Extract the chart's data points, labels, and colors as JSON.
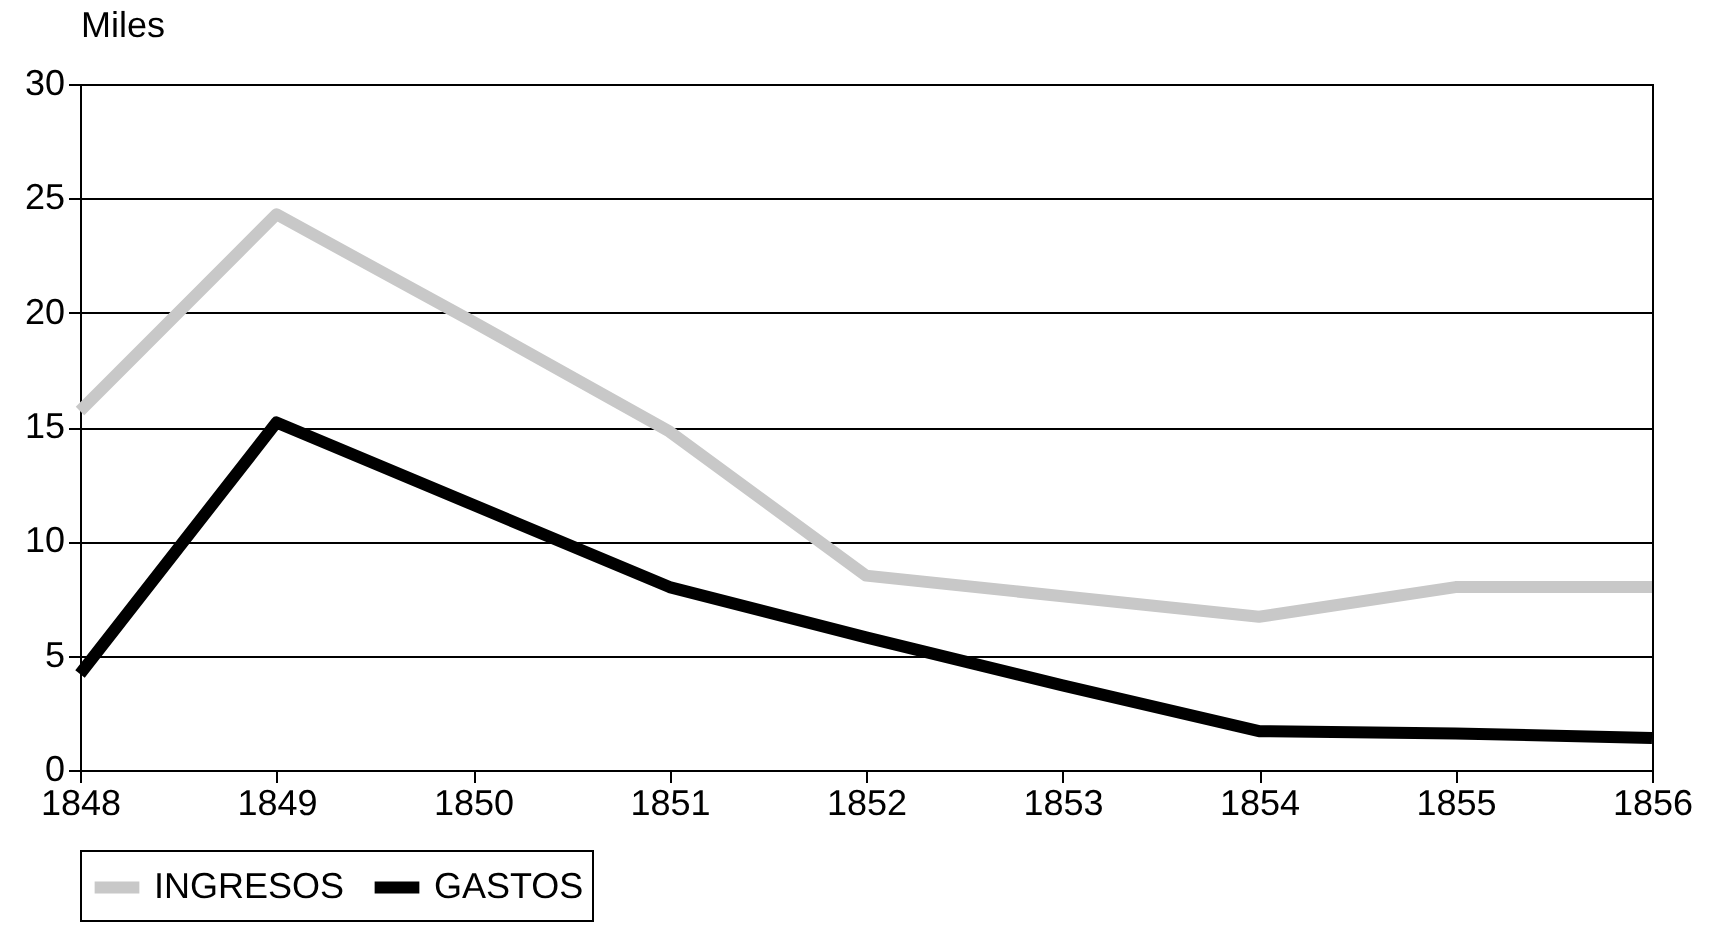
{
  "chart_data": {
    "type": "line",
    "ylabel": "Miles",
    "categories": [
      "1848",
      "1849",
      "1850",
      "1851",
      "1852",
      "1853",
      "1854",
      "1855",
      "1856"
    ],
    "series": [
      {
        "name": "INGRESOS",
        "color": "#c8c8c8",
        "values": [
          15.7,
          24.3,
          19.6,
          14.8,
          8.5,
          7.6,
          6.7,
          8.0,
          8.0
        ]
      },
      {
        "name": "GASTOS",
        "color": "#000000",
        "values": [
          4.2,
          15.2,
          11.6,
          8.0,
          5.8,
          3.7,
          1.7,
          1.6,
          1.4
        ]
      }
    ],
    "ylim": [
      0,
      30
    ],
    "yticks": [
      0,
      5,
      10,
      15,
      20,
      25,
      30
    ],
    "grid": "y",
    "legend": "bottom",
    "marker": "none",
    "line_style": "solid"
  }
}
